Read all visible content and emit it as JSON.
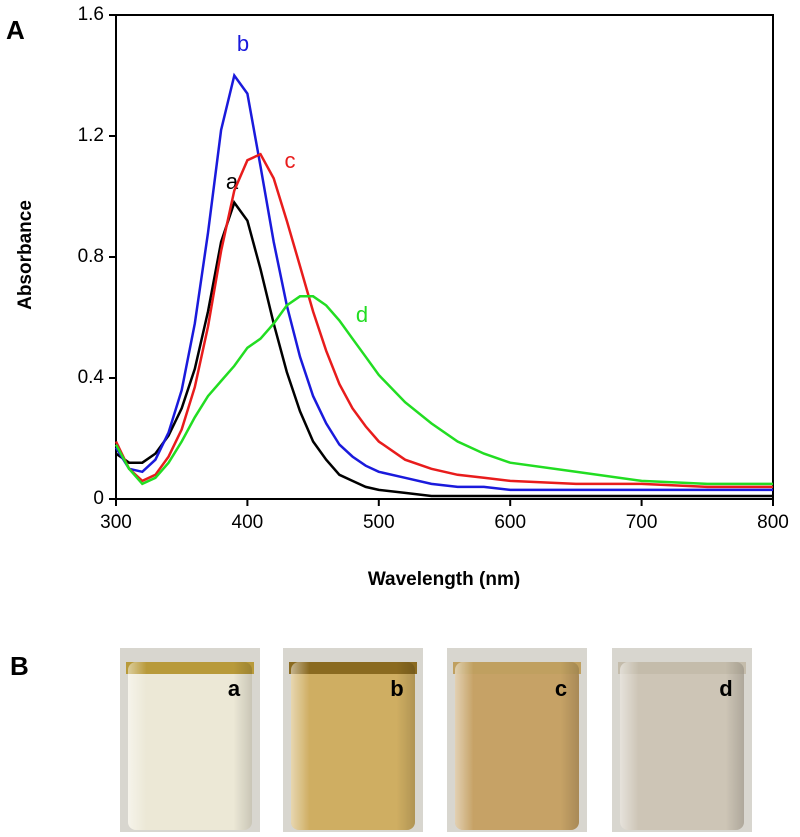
{
  "chart_data": {
    "type": "line",
    "panel_label": "A",
    "x_label": "Wavelength (nm)",
    "y_label": "Absorbance",
    "x": [
      300,
      310,
      320,
      330,
      340,
      350,
      360,
      370,
      380,
      390,
      400,
      410,
      420,
      430,
      440,
      450,
      460,
      470,
      480,
      490,
      500,
      520,
      540,
      560,
      580,
      600,
      650,
      700,
      750,
      800
    ],
    "series": [
      {
        "name": "a",
        "color": "#000000",
        "values": [
          0.15,
          0.12,
          0.12,
          0.15,
          0.21,
          0.3,
          0.43,
          0.62,
          0.85,
          0.98,
          0.92,
          0.76,
          0.58,
          0.42,
          0.29,
          0.19,
          0.13,
          0.08,
          0.06,
          0.04,
          0.03,
          0.02,
          0.01,
          0.01,
          0.01,
          0.01,
          0.01,
          0.01,
          0.01,
          0.01
        ]
      },
      {
        "name": "b",
        "color": "#1a1adc",
        "values": [
          0.17,
          0.1,
          0.09,
          0.13,
          0.22,
          0.36,
          0.58,
          0.88,
          1.22,
          1.4,
          1.34,
          1.1,
          0.85,
          0.64,
          0.47,
          0.34,
          0.25,
          0.18,
          0.14,
          0.11,
          0.09,
          0.07,
          0.05,
          0.04,
          0.04,
          0.03,
          0.03,
          0.03,
          0.03,
          0.03
        ]
      },
      {
        "name": "c",
        "color": "#e81c1c",
        "values": [
          0.19,
          0.1,
          0.06,
          0.08,
          0.14,
          0.23,
          0.37,
          0.57,
          0.82,
          1.02,
          1.12,
          1.14,
          1.06,
          0.92,
          0.77,
          0.62,
          0.49,
          0.38,
          0.3,
          0.24,
          0.19,
          0.13,
          0.1,
          0.08,
          0.07,
          0.06,
          0.05,
          0.05,
          0.04,
          0.04
        ]
      },
      {
        "name": "d",
        "color": "#22dd22",
        "values": [
          0.18,
          0.1,
          0.05,
          0.07,
          0.12,
          0.19,
          0.27,
          0.34,
          0.39,
          0.44,
          0.5,
          0.53,
          0.58,
          0.64,
          0.67,
          0.67,
          0.64,
          0.59,
          0.53,
          0.47,
          0.41,
          0.32,
          0.25,
          0.19,
          0.15,
          0.12,
          0.09,
          0.06,
          0.05,
          0.05
        ]
      }
    ],
    "xlim": [
      300,
      800
    ],
    "xticks": [
      300,
      400,
      500,
      600,
      700,
      800
    ],
    "ylim": [
      0,
      1.6
    ],
    "yticks": [
      0,
      0.4,
      0.8,
      1.2,
      1.6
    ]
  },
  "panel_b": {
    "label": "B",
    "vials": [
      "a",
      "b",
      "c",
      "d"
    ]
  }
}
